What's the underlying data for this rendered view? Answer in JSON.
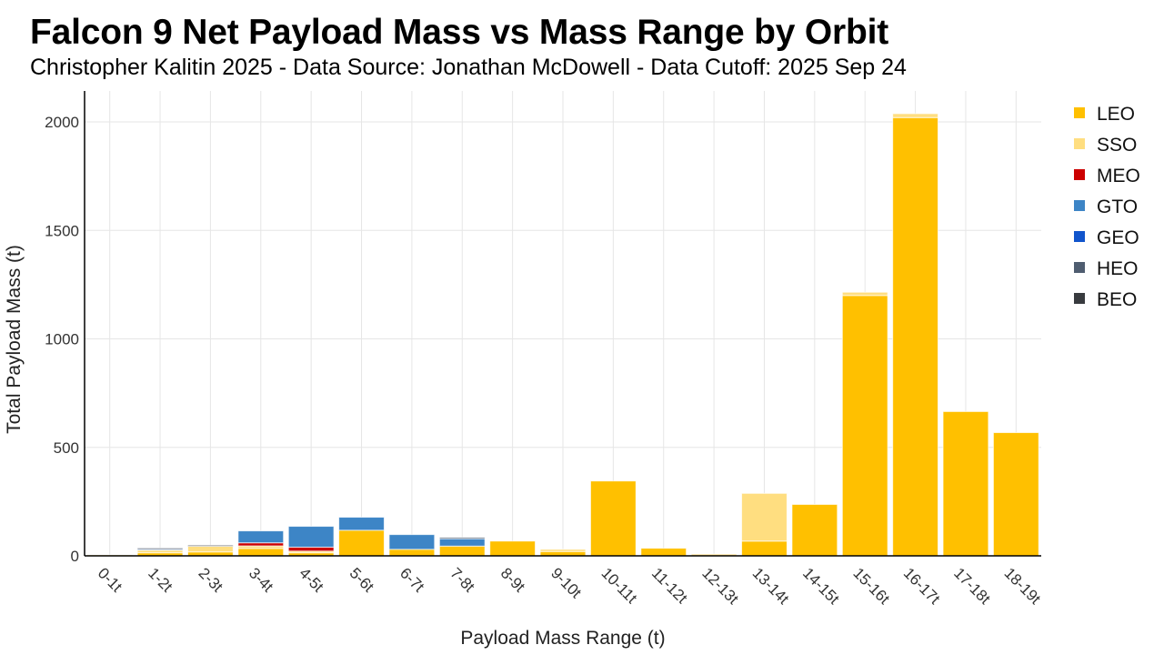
{
  "chart_data": {
    "type": "bar",
    "stacked": true,
    "title": "Falcon 9 Net Payload Mass vs Mass Range by Orbit",
    "subtitle": "Christopher Kalitin 2025 - Data Source: Jonathan McDowell - Data Cutoff: 2025 Sep 24",
    "xlabel": "Payload Mass Range (t)",
    "ylabel": "Total Payload Mass (t)",
    "ylim": [
      0,
      2150
    ],
    "yticks": [
      0,
      500,
      1000,
      1500,
      2000
    ],
    "grid": true,
    "legend_position": "right",
    "categories": [
      "0-1t",
      "1-2t",
      "2-3t",
      "3-4t",
      "4-5t",
      "5-6t",
      "6-7t",
      "7-8t",
      "8-9t",
      "9-10t",
      "10-11t",
      "11-12t",
      "12-13t",
      "13-14t",
      "14-15t",
      "15-16t",
      "16-17t",
      "17-18t",
      "18-19t"
    ],
    "series": [
      {
        "name": "LEO",
        "color": "#FFC000",
        "values": [
          4,
          14,
          18,
          34,
          14,
          118,
          30,
          45,
          68,
          20,
          345,
          35,
          0,
          68,
          237,
          1200,
          2020,
          665,
          568
        ]
      },
      {
        "name": "SSO",
        "color": "#FFDE80",
        "values": [
          0,
          12,
          26,
          12,
          8,
          0,
          0,
          0,
          0,
          10,
          0,
          0,
          8,
          220,
          0,
          15,
          18,
          0,
          0
        ]
      },
      {
        "name": "MEO",
        "color": "#CC0000",
        "values": [
          0,
          0,
          0,
          14,
          18,
          0,
          0,
          0,
          0,
          0,
          0,
          0,
          0,
          0,
          0,
          0,
          0,
          0,
          0
        ]
      },
      {
        "name": "GTO",
        "color": "#3D85C6",
        "values": [
          0,
          4,
          0,
          55,
          96,
          60,
          68,
          34,
          0,
          0,
          0,
          0,
          0,
          0,
          0,
          0,
          0,
          0,
          0
        ]
      },
      {
        "name": "GEO",
        "color": "#1155CC",
        "values": [
          0,
          0,
          0,
          0,
          0,
          0,
          0,
          0,
          0,
          0,
          0,
          0,
          0,
          0,
          0,
          0,
          0,
          0,
          0
        ]
      },
      {
        "name": "HEO",
        "color": "#4F5D70",
        "values": [
          0,
          6,
          0,
          0,
          0,
          0,
          0,
          6,
          0,
          0,
          0,
          0,
          0,
          0,
          0,
          0,
          0,
          0,
          0
        ]
      },
      {
        "name": "BEO",
        "color": "#383B3F",
        "values": [
          0,
          0,
          5,
          0,
          0,
          0,
          0,
          0,
          0,
          0,
          0,
          0,
          0,
          0,
          0,
          0,
          0,
          0,
          0
        ]
      }
    ]
  }
}
